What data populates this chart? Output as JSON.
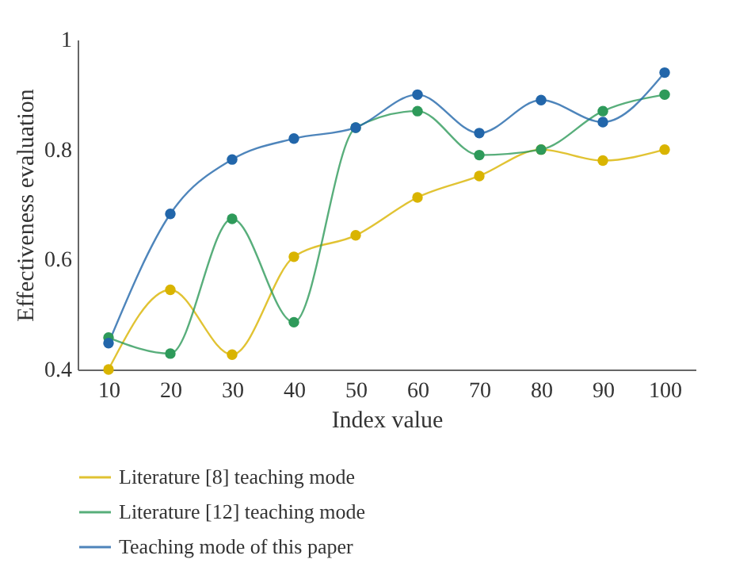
{
  "chart_data": {
    "type": "line",
    "xlabel": "Index value",
    "ylabel": "Effectiveness evaluation",
    "x": [
      10,
      20,
      30,
      40,
      50,
      60,
      70,
      80,
      90,
      100
    ],
    "series": [
      {
        "name": "Literature [8] teaching mode",
        "color": "#d9b400",
        "values": [
          0.4,
          0.545,
          0.427,
          0.605,
          0.644,
          0.713,
          0.752,
          0.8,
          0.78,
          0.8
        ]
      },
      {
        "name": "Literature [12] teaching mode",
        "color": "#2e9a5a",
        "values": [
          0.458,
          0.429,
          0.674,
          0.486,
          0.84,
          0.87,
          0.79,
          0.8,
          0.87,
          0.9
        ]
      },
      {
        "name": "Teaching mode of this paper",
        "color": "#2266aa",
        "values": [
          0.448,
          0.683,
          0.782,
          0.82,
          0.84,
          0.9,
          0.83,
          0.89,
          0.85,
          0.94
        ]
      }
    ],
    "xlim": [
      5,
      105
    ],
    "xticks": [
      10,
      20,
      30,
      40,
      50,
      60,
      70,
      80,
      90,
      100
    ],
    "ylim": [
      0.4,
      1
    ],
    "yticks": [
      0.4,
      0.6,
      0.8,
      1
    ],
    "grid": false,
    "legend": "bottom",
    "marker": "circle",
    "line_style": "solid"
  }
}
